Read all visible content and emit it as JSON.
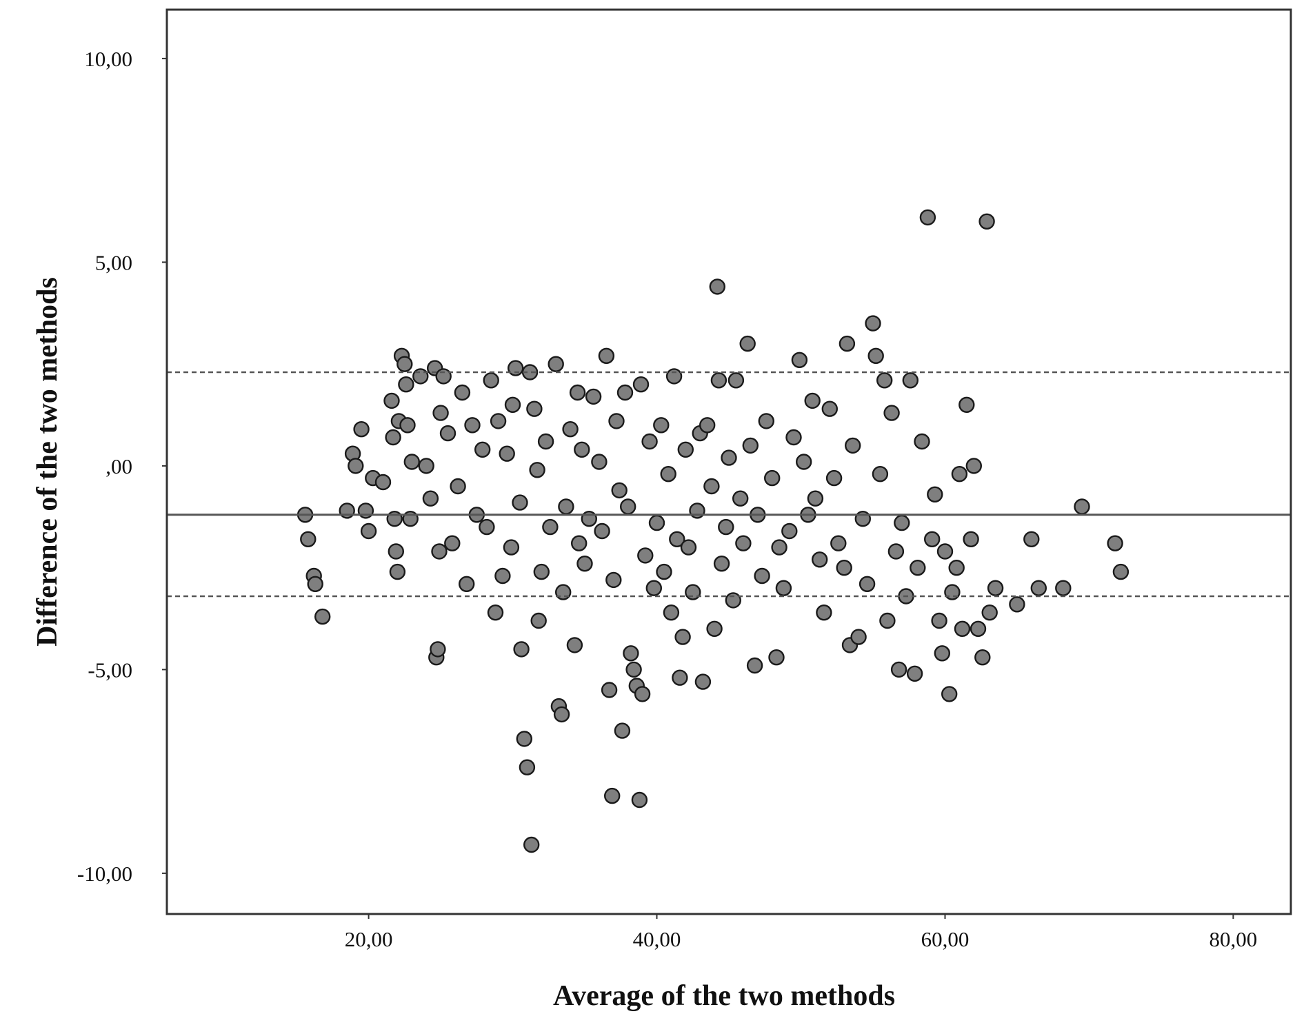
{
  "chart_data": {
    "type": "scatter",
    "title": "",
    "xlabel": "Average of the two methods",
    "ylabel": "Difference of the two methods",
    "xlim": [
      6,
      84
    ],
    "ylim": [
      -11,
      11.2
    ],
    "x_ticks": [
      20,
      40,
      60,
      80
    ],
    "x_tick_labels": [
      "20,00",
      "40,00",
      "60,00",
      "80,00"
    ],
    "y_ticks": [
      10,
      5,
      0,
      -5,
      -10
    ],
    "y_tick_labels": [
      "10,00",
      "5,00",
      ",00",
      "-5,00",
      "-10,00"
    ],
    "grid": false,
    "legend": "none",
    "reference_lines": [
      {
        "kind": "mean",
        "style": "solid",
        "y": -1.2
      },
      {
        "kind": "upper-limit",
        "style": "dashed",
        "y": 2.3
      },
      {
        "kind": "lower-limit",
        "style": "dashed",
        "y": -3.2
      }
    ],
    "colors": {
      "marker_fill": "#7f7f7f",
      "marker_stroke": "#1a1a1a",
      "axis": "#333333",
      "reference_line": "#555555"
    },
    "series": [
      {
        "points": [
          [
            15.6,
            -1.2
          ],
          [
            15.8,
            -1.8
          ],
          [
            16.2,
            -2.7
          ],
          [
            16.3,
            -2.9
          ],
          [
            16.8,
            -3.7
          ],
          [
            18.5,
            -1.1
          ],
          [
            18.9,
            0.3
          ],
          [
            19.1,
            0.0
          ],
          [
            19.5,
            0.9
          ],
          [
            19.8,
            -1.1
          ],
          [
            20.0,
            -1.6
          ],
          [
            20.3,
            -0.3
          ],
          [
            21.0,
            -0.4
          ],
          [
            21.6,
            1.6
          ],
          [
            21.7,
            0.7
          ],
          [
            21.8,
            -1.3
          ],
          [
            21.9,
            -2.1
          ],
          [
            22.0,
            -2.6
          ],
          [
            22.1,
            1.1
          ],
          [
            22.3,
            2.7
          ],
          [
            22.5,
            2.5
          ],
          [
            22.6,
            2.0
          ],
          [
            22.7,
            1.0
          ],
          [
            22.9,
            -1.3
          ],
          [
            23.0,
            0.1
          ],
          [
            23.6,
            2.2
          ],
          [
            24.0,
            0.0
          ],
          [
            24.3,
            -0.8
          ],
          [
            24.6,
            2.4
          ],
          [
            24.7,
            -4.7
          ],
          [
            24.8,
            -4.5
          ],
          [
            24.9,
            -2.1
          ],
          [
            25.0,
            1.3
          ],
          [
            25.2,
            2.2
          ],
          [
            25.5,
            0.8
          ],
          [
            25.8,
            -1.9
          ],
          [
            26.2,
            -0.5
          ],
          [
            26.5,
            1.8
          ],
          [
            26.8,
            -2.9
          ],
          [
            27.2,
            1.0
          ],
          [
            27.5,
            -1.2
          ],
          [
            27.9,
            0.4
          ],
          [
            28.2,
            -1.5
          ],
          [
            28.5,
            2.1
          ],
          [
            28.8,
            -3.6
          ],
          [
            29.0,
            1.1
          ],
          [
            29.3,
            -2.7
          ],
          [
            29.6,
            0.3
          ],
          [
            29.9,
            -2.0
          ],
          [
            30.0,
            1.5
          ],
          [
            30.2,
            2.4
          ],
          [
            30.5,
            -0.9
          ],
          [
            30.6,
            -4.5
          ],
          [
            30.8,
            -6.7
          ],
          [
            31.0,
            -7.4
          ],
          [
            31.2,
            2.3
          ],
          [
            31.3,
            -9.3
          ],
          [
            31.5,
            1.4
          ],
          [
            31.7,
            -0.1
          ],
          [
            31.8,
            -3.8
          ],
          [
            32.0,
            -2.6
          ],
          [
            32.3,
            0.6
          ],
          [
            32.6,
            -1.5
          ],
          [
            33.0,
            2.5
          ],
          [
            33.2,
            -5.9
          ],
          [
            33.4,
            -6.1
          ],
          [
            33.5,
            -3.1
          ],
          [
            33.7,
            -1.0
          ],
          [
            34.0,
            0.9
          ],
          [
            34.3,
            -4.4
          ],
          [
            34.5,
            1.8
          ],
          [
            34.6,
            -1.9
          ],
          [
            34.8,
            0.4
          ],
          [
            35.0,
            -2.4
          ],
          [
            35.3,
            -1.3
          ],
          [
            35.6,
            1.7
          ],
          [
            36.0,
            0.1
          ],
          [
            36.2,
            -1.6
          ],
          [
            36.5,
            2.7
          ],
          [
            36.7,
            -5.5
          ],
          [
            36.9,
            -8.1
          ],
          [
            37.0,
            -2.8
          ],
          [
            37.2,
            1.1
          ],
          [
            37.4,
            -0.6
          ],
          [
            37.6,
            -6.5
          ],
          [
            37.8,
            1.8
          ],
          [
            38.0,
            -1.0
          ],
          [
            38.2,
            -4.6
          ],
          [
            38.4,
            -5.0
          ],
          [
            38.6,
            -5.4
          ],
          [
            38.8,
            -8.2
          ],
          [
            38.9,
            2.0
          ],
          [
            39.0,
            -5.6
          ],
          [
            39.2,
            -2.2
          ],
          [
            39.5,
            0.6
          ],
          [
            39.8,
            -3.0
          ],
          [
            40.0,
            -1.4
          ],
          [
            40.3,
            1.0
          ],
          [
            40.5,
            -2.6
          ],
          [
            40.8,
            -0.2
          ],
          [
            41.0,
            -3.6
          ],
          [
            41.2,
            2.2
          ],
          [
            41.4,
            -1.8
          ],
          [
            41.6,
            -5.2
          ],
          [
            41.8,
            -4.2
          ],
          [
            42.0,
            0.4
          ],
          [
            42.2,
            -2.0
          ],
          [
            42.5,
            -3.1
          ],
          [
            42.8,
            -1.1
          ],
          [
            43.0,
            0.8
          ],
          [
            43.2,
            -5.3
          ],
          [
            43.5,
            1.0
          ],
          [
            43.8,
            -0.5
          ],
          [
            44.0,
            -4.0
          ],
          [
            44.2,
            4.4
          ],
          [
            44.3,
            2.1
          ],
          [
            44.5,
            -2.4
          ],
          [
            44.8,
            -1.5
          ],
          [
            45.0,
            0.2
          ],
          [
            45.3,
            -3.3
          ],
          [
            45.5,
            2.1
          ],
          [
            45.8,
            -0.8
          ],
          [
            46.0,
            -1.9
          ],
          [
            46.3,
            3.0
          ],
          [
            46.5,
            0.5
          ],
          [
            46.8,
            -4.9
          ],
          [
            47.0,
            -1.2
          ],
          [
            47.3,
            -2.7
          ],
          [
            47.6,
            1.1
          ],
          [
            48.0,
            -0.3
          ],
          [
            48.3,
            -4.7
          ],
          [
            48.5,
            -2.0
          ],
          [
            48.8,
            -3.0
          ],
          [
            49.2,
            -1.6
          ],
          [
            49.5,
            0.7
          ],
          [
            49.9,
            2.6
          ],
          [
            50.2,
            0.1
          ],
          [
            50.5,
            -1.2
          ],
          [
            50.8,
            1.6
          ],
          [
            51.0,
            -0.8
          ],
          [
            51.3,
            -2.3
          ],
          [
            51.6,
            -3.6
          ],
          [
            52.0,
            1.4
          ],
          [
            52.3,
            -0.3
          ],
          [
            52.6,
            -1.9
          ],
          [
            53.0,
            -2.5
          ],
          [
            53.2,
            3.0
          ],
          [
            53.4,
            -4.4
          ],
          [
            53.6,
            0.5
          ],
          [
            54.0,
            -4.2
          ],
          [
            54.3,
            -1.3
          ],
          [
            54.6,
            -2.9
          ],
          [
            55.0,
            3.5
          ],
          [
            55.2,
            2.7
          ],
          [
            55.5,
            -0.2
          ],
          [
            55.8,
            2.1
          ],
          [
            56.0,
            -3.8
          ],
          [
            56.3,
            1.3
          ],
          [
            56.6,
            -2.1
          ],
          [
            56.8,
            -5.0
          ],
          [
            57.0,
            -1.4
          ],
          [
            57.3,
            -3.2
          ],
          [
            57.6,
            2.1
          ],
          [
            57.9,
            -5.1
          ],
          [
            58.1,
            -2.5
          ],
          [
            58.4,
            0.6
          ],
          [
            58.8,
            6.1
          ],
          [
            59.1,
            -1.8
          ],
          [
            59.3,
            -0.7
          ],
          [
            59.6,
            -3.8
          ],
          [
            59.8,
            -4.6
          ],
          [
            60.0,
            -2.1
          ],
          [
            60.3,
            -5.6
          ],
          [
            60.5,
            -3.1
          ],
          [
            60.8,
            -2.5
          ],
          [
            61.0,
            -0.2
          ],
          [
            61.2,
            -4.0
          ],
          [
            61.5,
            1.5
          ],
          [
            61.8,
            -1.8
          ],
          [
            62.0,
            0.0
          ],
          [
            62.3,
            -4.0
          ],
          [
            62.6,
            -4.7
          ],
          [
            62.9,
            6.0
          ],
          [
            63.1,
            -3.6
          ],
          [
            63.5,
            -3.0
          ],
          [
            65.0,
            -3.4
          ],
          [
            66.0,
            -1.8
          ],
          [
            66.5,
            -3.0
          ],
          [
            68.2,
            -3.0
          ],
          [
            69.5,
            -1.0
          ],
          [
            71.8,
            -1.9
          ],
          [
            72.2,
            -2.6
          ]
        ]
      }
    ]
  }
}
